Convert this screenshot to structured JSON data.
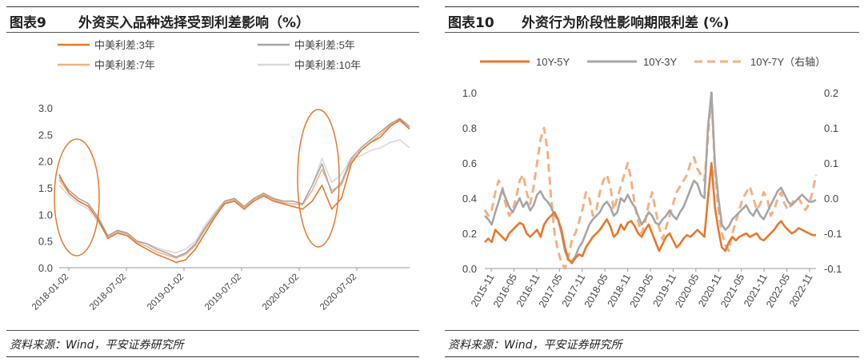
{
  "left": {
    "title_num": "图表9",
    "title_text": "外资买入品种选择受到利差影响（%）",
    "source": "资料来源：Wind，平安证券研究所"
  },
  "right": {
    "title_num": "图表10",
    "title_text": "外资行为阶段性影响期限利差 (%)",
    "source": "资料来源：Wind，平安证券研究所"
  },
  "chart_data": [
    {
      "type": "line",
      "title": "外资买入品种选择受到利差影响（%）",
      "ylim": [
        0,
        3.0
      ],
      "yticks": [
        0.0,
        0.5,
        1.0,
        1.5,
        2.0,
        2.5,
        3.0
      ],
      "xticks": [
        "2018-01-02",
        "2018-07-02",
        "2019-01-02",
        "2019-07-02",
        "2020-01-02",
        "2020-07-02"
      ],
      "legend_placement": "top",
      "x": [
        "2018-01",
        "2018-02",
        "2018-03",
        "2018-04",
        "2018-05",
        "2018-06",
        "2018-07",
        "2018-08",
        "2018-09",
        "2018-10",
        "2018-11",
        "2018-12",
        "2019-01",
        "2019-02",
        "2019-03",
        "2019-04",
        "2019-05",
        "2019-06",
        "2019-07",
        "2019-08",
        "2019-09",
        "2019-10",
        "2019-11",
        "2019-12",
        "2020-01",
        "2020-02",
        "2020-03",
        "2020-04",
        "2020-05",
        "2020-06",
        "2020-07",
        "2020-08",
        "2020-09",
        "2020-10",
        "2020-11",
        "2020-12",
        "2021-01"
      ],
      "series": [
        {
          "name": "中美利差:3年",
          "color": "#E8782D",
          "values": [
            1.75,
            1.4,
            1.25,
            1.15,
            0.9,
            0.55,
            0.65,
            0.6,
            0.45,
            0.35,
            0.25,
            0.18,
            0.1,
            0.15,
            0.35,
            0.65,
            0.95,
            1.2,
            1.25,
            1.1,
            1.25,
            1.35,
            1.25,
            1.2,
            1.15,
            1.1,
            1.25,
            1.55,
            1.1,
            1.3,
            1.95,
            2.2,
            2.35,
            2.45,
            2.65,
            2.78,
            2.6
          ]
        },
        {
          "name": "中美利差:5年",
          "color": "#A6A6A6",
          "values": [
            1.7,
            1.45,
            1.3,
            1.2,
            0.95,
            0.6,
            0.7,
            0.65,
            0.5,
            0.45,
            0.35,
            0.28,
            0.2,
            0.28,
            0.45,
            0.75,
            1.0,
            1.25,
            1.3,
            1.15,
            1.3,
            1.4,
            1.3,
            1.25,
            1.25,
            1.2,
            1.55,
            1.95,
            1.4,
            1.6,
            2.05,
            2.25,
            2.4,
            2.55,
            2.7,
            2.8,
            2.65
          ]
        },
        {
          "name": "中美利差:7年",
          "color": "#F4B183",
          "values": [
            1.65,
            1.4,
            1.25,
            1.15,
            0.9,
            0.58,
            0.68,
            0.63,
            0.48,
            0.4,
            0.3,
            0.24,
            0.18,
            0.25,
            0.42,
            0.72,
            0.98,
            1.22,
            1.28,
            1.12,
            1.28,
            1.38,
            1.28,
            1.22,
            1.2,
            1.18,
            1.45,
            1.85,
            1.45,
            1.55,
            2.0,
            2.2,
            2.35,
            2.5,
            2.68,
            2.75,
            2.62
          ]
        },
        {
          "name": "中美利差:10年",
          "color": "#D9D9D9",
          "values": [
            1.55,
            1.35,
            1.2,
            1.1,
            0.85,
            0.58,
            0.7,
            0.65,
            0.5,
            0.45,
            0.38,
            0.32,
            0.28,
            0.35,
            0.5,
            0.8,
            1.05,
            1.25,
            1.3,
            1.15,
            1.3,
            1.4,
            1.3,
            1.25,
            1.25,
            1.2,
            1.55,
            2.05,
            1.6,
            1.75,
            2.05,
            2.1,
            2.2,
            2.25,
            2.35,
            2.4,
            2.25
          ]
        }
      ],
      "annotations": [
        "ellipse around 2018-01 to 2018-02",
        "ellipse around 2020-03 to 2020-06"
      ]
    },
    {
      "type": "line",
      "title": "外资行为阶段性影响期限利差 (%)",
      "ylim": [
        0,
        1.0
      ],
      "yticks": [
        0.0,
        0.2,
        0.4,
        0.6,
        0.8,
        1.0
      ],
      "y2lim": [
        -0.1,
        0.2
      ],
      "y2ticks": [
        "-0.1",
        "-0.1",
        "0.0",
        "0.1",
        "0.1",
        "0.2"
      ],
      "xticks": [
        "2015-11",
        "2016-05",
        "2016-11",
        "2017-05",
        "2017-11",
        "2018-05",
        "2018-11",
        "2019-05",
        "2019-11",
        "2020-05",
        "2020-11",
        "2021-05",
        "2021-11",
        "2022-05",
        "2022-11"
      ],
      "legend_placement": "top",
      "series": [
        {
          "name": "10Y-5Y",
          "axis": "left",
          "color": "#E8782D",
          "values": [
            0.15,
            0.17,
            0.15,
            0.22,
            0.2,
            0.18,
            0.16,
            0.2,
            0.22,
            0.24,
            0.26,
            0.25,
            0.2,
            0.18,
            0.2,
            0.22,
            0.18,
            0.25,
            0.28,
            0.3,
            0.32,
            0.28,
            0.22,
            0.12,
            0.05,
            0.03,
            0.06,
            0.08,
            0.07,
            0.12,
            0.15,
            0.18,
            0.2,
            0.22,
            0.25,
            0.28,
            0.24,
            0.18,
            0.2,
            0.25,
            0.22,
            0.26,
            0.27,
            0.24,
            0.2,
            0.18,
            0.22,
            0.25,
            0.2,
            0.15,
            0.1,
            0.14,
            0.18,
            0.2,
            0.16,
            0.12,
            0.14,
            0.17,
            0.19,
            0.18,
            0.2,
            0.22,
            0.2,
            0.18,
            0.4,
            0.6,
            0.35,
            0.22,
            0.12,
            0.1,
            0.15,
            0.18,
            0.16,
            0.18,
            0.19,
            0.2,
            0.18,
            0.19,
            0.2,
            0.17,
            0.16,
            0.18,
            0.2,
            0.22,
            0.25,
            0.27,
            0.24,
            0.22,
            0.2,
            0.21,
            0.23,
            0.22,
            0.21,
            0.2,
            0.19,
            0.19
          ]
        },
        {
          "name": "10Y-3Y",
          "axis": "left",
          "color": "#A6A6A6",
          "values": [
            0.3,
            0.28,
            0.25,
            0.32,
            0.38,
            0.45,
            0.4,
            0.35,
            0.32,
            0.36,
            0.4,
            0.35,
            0.38,
            0.33,
            0.36,
            0.42,
            0.44,
            0.4,
            0.38,
            0.35,
            0.3,
            0.28,
            0.2,
            0.1,
            0.05,
            0.04,
            0.07,
            0.12,
            0.15,
            0.2,
            0.25,
            0.28,
            0.3,
            0.32,
            0.36,
            0.38,
            0.35,
            0.3,
            0.32,
            0.4,
            0.38,
            0.42,
            0.38,
            0.35,
            0.3,
            0.25,
            0.28,
            0.32,
            0.3,
            0.26,
            0.25,
            0.28,
            0.3,
            0.33,
            0.3,
            0.28,
            0.32,
            0.35,
            0.4,
            0.45,
            0.5,
            0.48,
            0.42,
            0.4,
            0.8,
            1.0,
            0.6,
            0.4,
            0.25,
            0.22,
            0.24,
            0.28,
            0.3,
            0.32,
            0.34,
            0.36,
            0.32,
            0.3,
            0.34,
            0.3,
            0.28,
            0.32,
            0.36,
            0.4,
            0.44,
            0.46,
            0.42,
            0.38,
            0.36,
            0.38,
            0.4,
            0.42,
            0.4,
            0.38,
            0.38,
            0.39
          ]
        },
        {
          "name": "10Y-7Y（右轴）",
          "axis": "right",
          "color": "#F4B183",
          "dash": true,
          "values": [
            0.0,
            -0.01,
            0.0,
            0.03,
            0.05,
            0.04,
            0.01,
            -0.01,
            0.0,
            0.02,
            0.05,
            0.06,
            0.03,
            0.01,
            0.04,
            0.08,
            0.12,
            0.14,
            0.1,
            0.02,
            -0.04,
            -0.07,
            -0.09,
            -0.1,
            -0.08,
            -0.05,
            -0.04,
            -0.02,
            0.0,
            0.03,
            0.02,
            -0.01,
            0.0,
            0.03,
            0.05,
            0.06,
            0.04,
            0.0,
            0.02,
            0.04,
            0.06,
            0.08,
            0.05,
            0.01,
            -0.02,
            -0.04,
            -0.02,
            0.01,
            0.03,
            0.0,
            -0.03,
            -0.05,
            -0.03,
            -0.01,
            0.01,
            0.03,
            0.04,
            0.05,
            0.06,
            0.08,
            0.09,
            0.07,
            0.06,
            0.05,
            0.12,
            0.2,
            0.07,
            0.0,
            -0.04,
            -0.06,
            -0.07,
            -0.04,
            -0.02,
            0.0,
            0.02,
            0.03,
            0.04,
            0.02,
            0.0,
            0.01,
            0.03,
            0.02,
            -0.01,
            0.0,
            0.02,
            0.03,
            0.01,
            0.0,
            0.01,
            0.02,
            0.02,
            0.01,
            0.0,
            0.01,
            0.03,
            0.06
          ]
        }
      ]
    }
  ]
}
